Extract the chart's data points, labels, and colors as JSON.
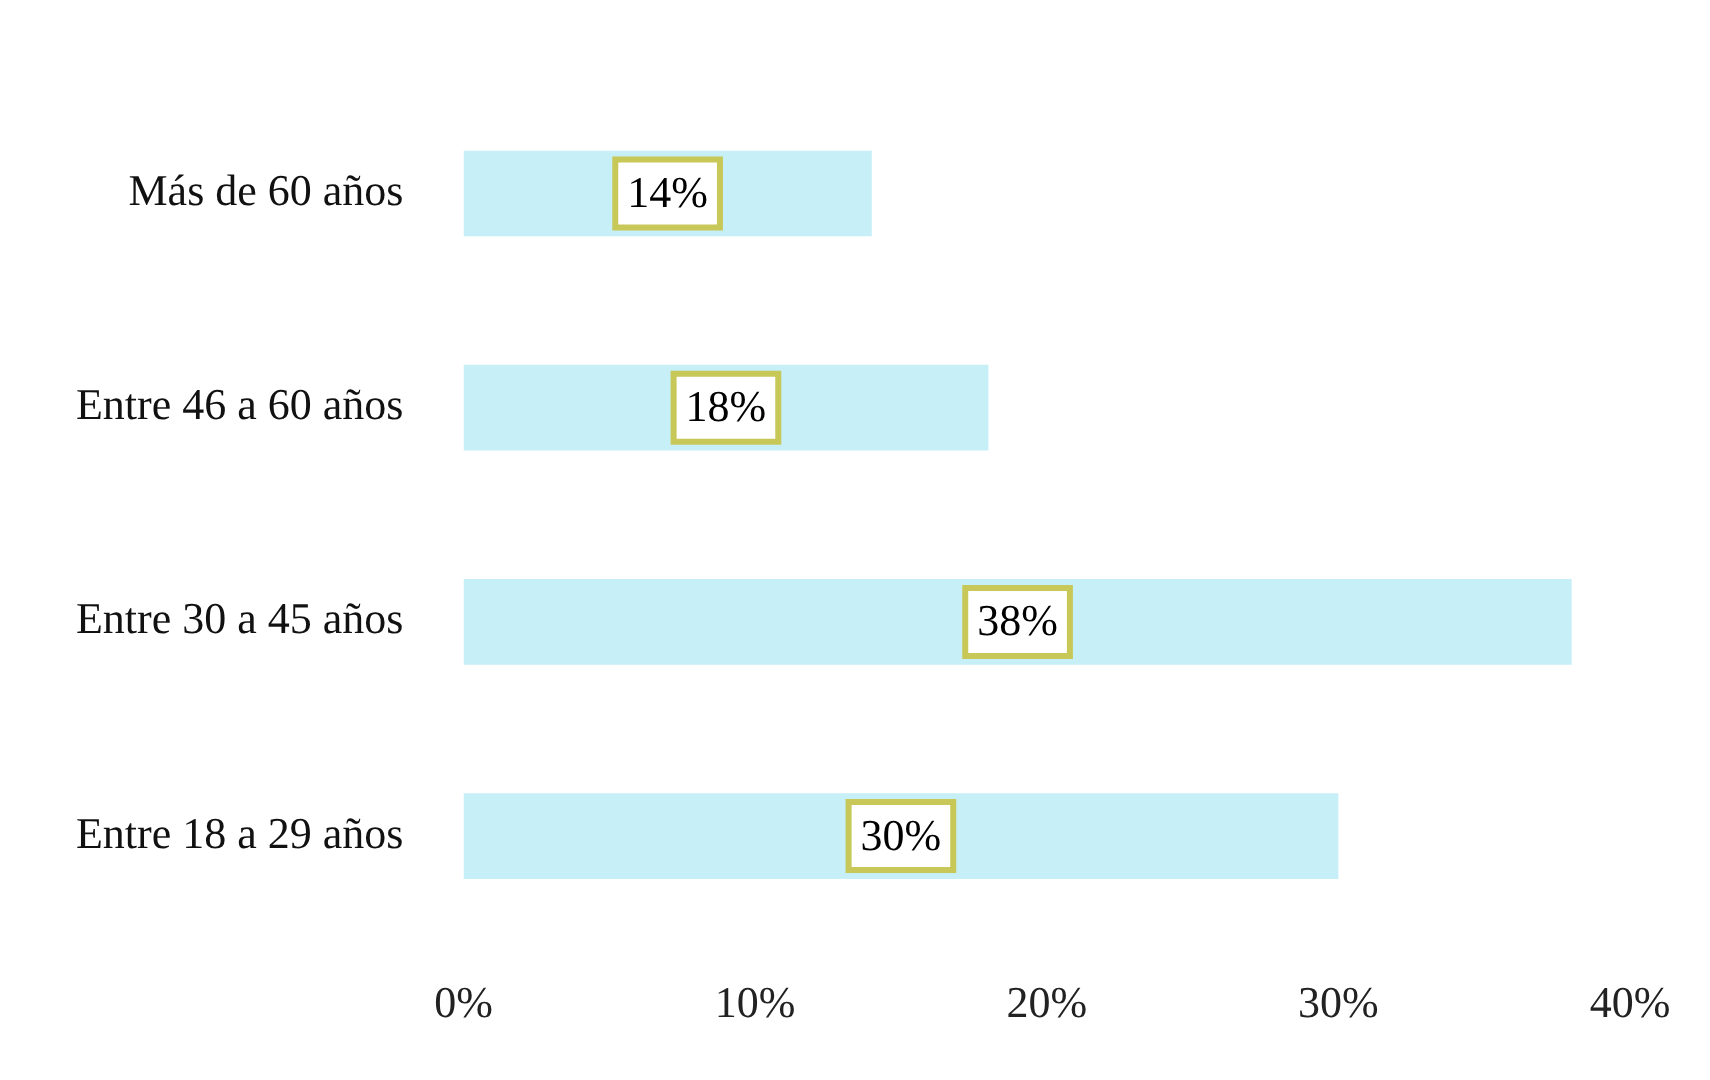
{
  "chart_data": {
    "type": "bar",
    "orientation": "horizontal",
    "categories": [
      "Más de 60 años",
      "Entre 46 a 60 años",
      "Entre 30 a 45 años",
      "Entre 18 a 29 años"
    ],
    "values": [
      14,
      18,
      38,
      30
    ],
    "value_labels": [
      "14%",
      "18%",
      "38%",
      "30%"
    ],
    "color": "#c6eff7",
    "xlim": [
      0,
      40
    ],
    "xticks": [
      {
        "value": 0,
        "label": "0%"
      },
      {
        "value": 10,
        "label": "10%"
      },
      {
        "value": 20,
        "label": "20%"
      },
      {
        "value": 30,
        "label": "30%"
      },
      {
        "value": 40,
        "label": "40%"
      }
    ],
    "grid": false,
    "legend": false
  }
}
